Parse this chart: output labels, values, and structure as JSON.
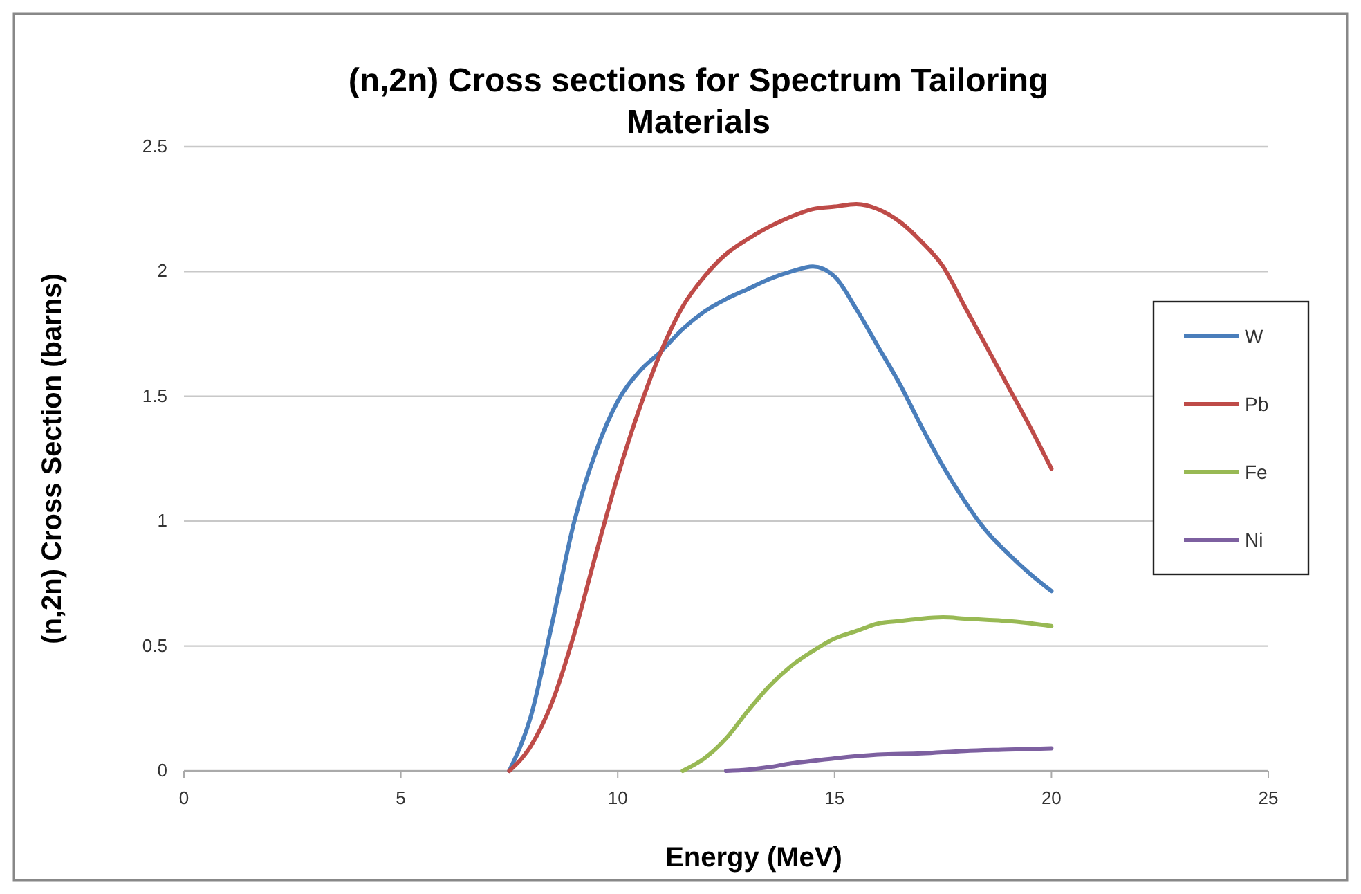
{
  "chart_data": {
    "type": "line",
    "title": "(n,2n) Cross sections for Spectrum Tailoring Materials",
    "xlabel": "Energy (MeV)",
    "ylabel": "(n,2n) Cross Section (barns)",
    "xlim": [
      0,
      25
    ],
    "xticks": [
      0,
      5,
      10,
      15,
      20,
      25
    ],
    "ylim": [
      0,
      2.5
    ],
    "yticks": [
      0,
      0.5,
      1,
      1.5,
      2,
      2.5
    ],
    "grid": "y",
    "legend": "right",
    "marker": "none",
    "line_style": "solid",
    "series": [
      {
        "name": "W",
        "color": "#4a7ebb",
        "x": [
          7.5,
          8,
          8.5,
          9,
          9.5,
          10,
          10.5,
          11,
          11.5,
          12,
          12.5,
          13,
          13.5,
          14,
          14.5,
          15,
          15.5,
          16,
          16.5,
          17,
          17.5,
          18,
          18.5,
          19,
          19.5,
          20
        ],
        "values": [
          0,
          0.22,
          0.6,
          1.0,
          1.28,
          1.48,
          1.6,
          1.68,
          1.77,
          1.84,
          1.89,
          1.93,
          1.97,
          2.0,
          2.02,
          1.98,
          1.85,
          1.7,
          1.55,
          1.38,
          1.22,
          1.08,
          0.96,
          0.87,
          0.79,
          0.72
        ]
      },
      {
        "name": "Pb",
        "color": "#be4b48",
        "x": [
          7.5,
          8,
          8.5,
          9,
          9.5,
          10,
          10.5,
          11,
          11.5,
          12,
          12.5,
          13,
          13.5,
          14,
          14.5,
          15,
          15.5,
          16,
          16.5,
          17,
          17.5,
          18,
          18.5,
          19,
          19.5,
          20
        ],
        "values": [
          0,
          0.1,
          0.28,
          0.55,
          0.87,
          1.18,
          1.45,
          1.68,
          1.86,
          1.98,
          2.07,
          2.13,
          2.18,
          2.22,
          2.25,
          2.26,
          2.27,
          2.25,
          2.2,
          2.12,
          2.02,
          1.86,
          1.7,
          1.54,
          1.38,
          1.21
        ]
      },
      {
        "name": "Fe",
        "color": "#98b954",
        "x": [
          11.5,
          12,
          12.5,
          13,
          13.5,
          14,
          14.5,
          15,
          15.5,
          16,
          16.5,
          17,
          17.5,
          18,
          18.5,
          19,
          20
        ],
        "values": [
          0,
          0.05,
          0.13,
          0.24,
          0.34,
          0.42,
          0.48,
          0.53,
          0.56,
          0.59,
          0.6,
          0.61,
          0.615,
          0.61,
          0.605,
          0.6,
          0.58
        ]
      },
      {
        "name": "Ni",
        "color": "#7d60a0",
        "x": [
          12.5,
          13,
          13.5,
          14,
          14.5,
          15,
          16,
          17,
          18,
          19,
          20
        ],
        "values": [
          0,
          0.005,
          0.015,
          0.03,
          0.04,
          0.05,
          0.065,
          0.07,
          0.08,
          0.085,
          0.09
        ]
      }
    ]
  }
}
